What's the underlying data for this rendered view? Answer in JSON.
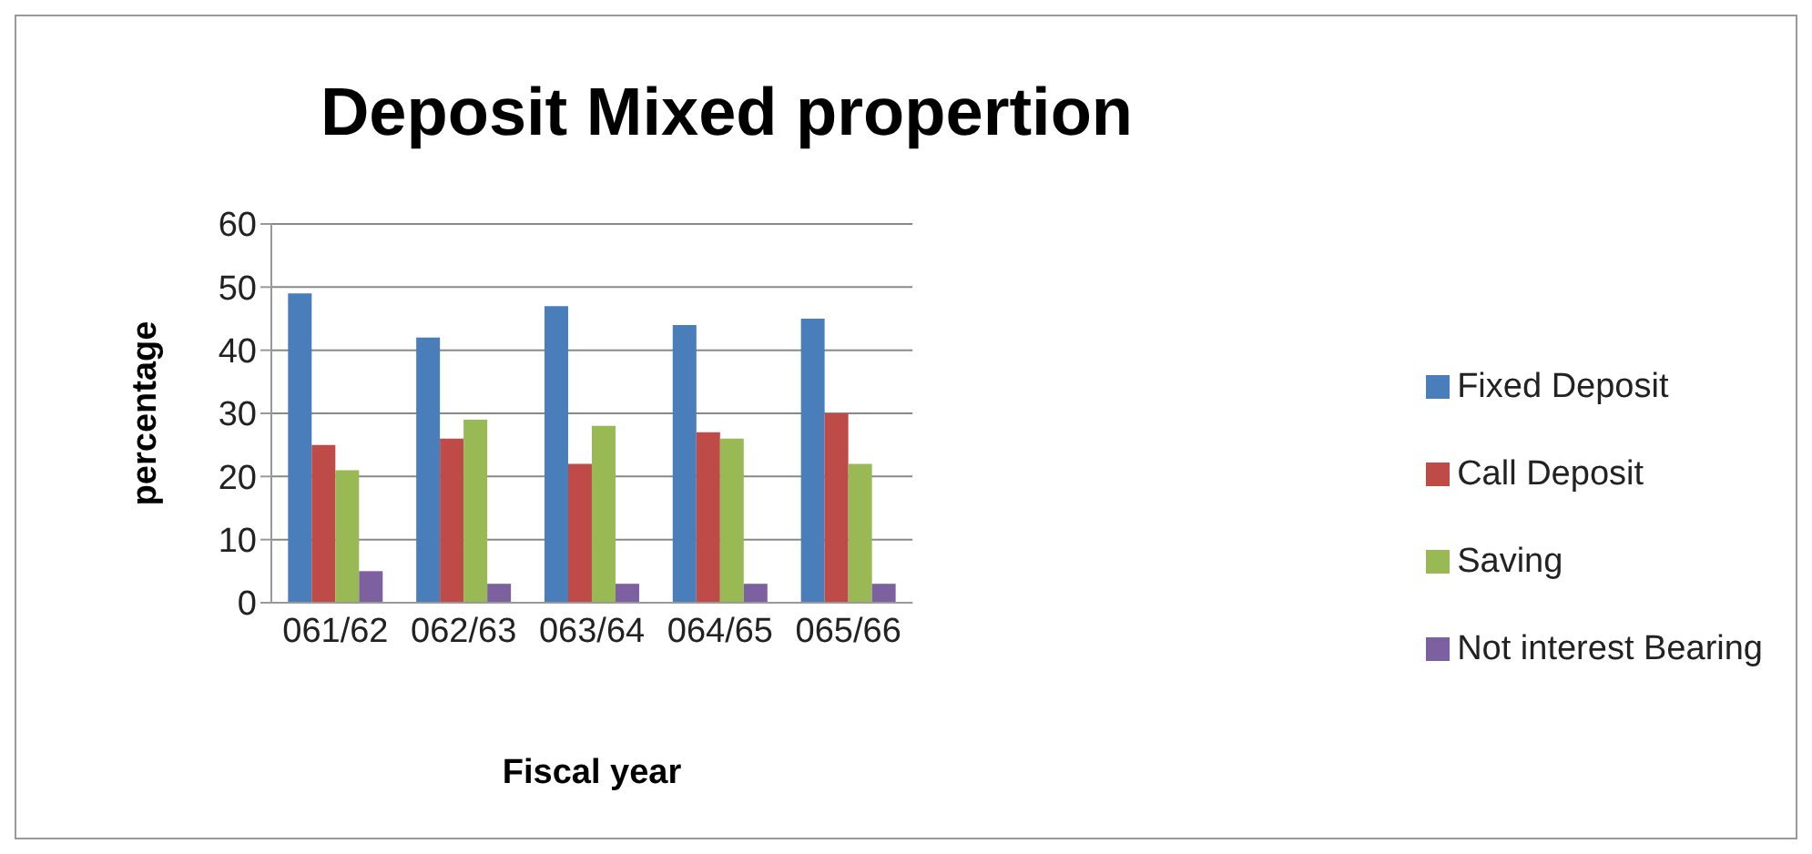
{
  "chart_data": {
    "type": "bar",
    "title": "Deposit Mixed propertion",
    "xlabel": "Fiscal year",
    "ylabel": "percentage",
    "categories": [
      "061/62",
      "062/63",
      "063/64",
      "064/65",
      "065/66"
    ],
    "series": [
      {
        "name": "Fixed Deposit",
        "color": "#4a7ebb",
        "values": [
          49,
          42,
          47,
          44,
          45
        ]
      },
      {
        "name": "Call Deposit",
        "color": "#be4b48",
        "values": [
          25,
          26,
          22,
          27,
          30
        ]
      },
      {
        "name": "Saving",
        "color": "#98b954",
        "values": [
          21,
          29,
          28,
          26,
          22
        ]
      },
      {
        "name": "Not interest  Bearing",
        "color": "#7d60a0",
        "values": [
          5,
          3,
          3,
          3,
          3
        ]
      }
    ],
    "ylim": [
      0,
      60
    ],
    "yticks": [
      0,
      10,
      20,
      30,
      40,
      50,
      60
    ],
    "grid": "y",
    "legend": "right"
  }
}
